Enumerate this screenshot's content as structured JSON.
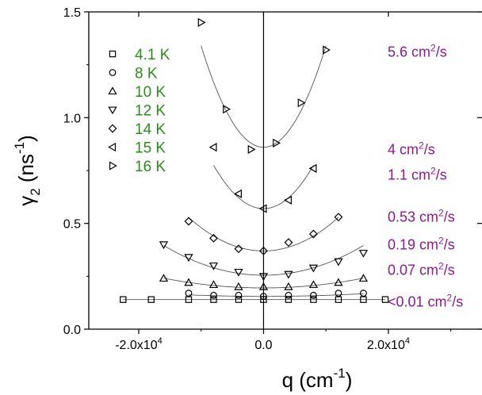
{
  "chart_data": {
    "type": "scatter",
    "xlabel": "q (cm",
    "xlabel_exp": "-1",
    "xlabel_close": ")",
    "ylabel": "γ",
    "ylabel_sub": "2",
    "ylabel_mid": " (ns",
    "ylabel_exp": "-1",
    "ylabel_close": ")",
    "xlim": [
      -28000,
      35000
    ],
    "ylim": [
      0,
      1.5
    ],
    "grid": false,
    "legend_position": "top-left",
    "x_ticks": [
      {
        "value": -20000,
        "label": "-2.0x10",
        "exp": "4"
      },
      {
        "value": 0,
        "label": "0.0",
        "exp": ""
      },
      {
        "value": 20000,
        "label": "2.0x10",
        "exp": "4"
      }
    ],
    "y_ticks": [
      {
        "value": 0.0,
        "label": "0.0"
      },
      {
        "value": 0.5,
        "label": "0.5"
      },
      {
        "value": 1.0,
        "label": "1.0"
      },
      {
        "value": 1.5,
        "label": "1.5"
      }
    ],
    "legend_color": "#2e8b1e",
    "diffusion_color": "#8b1a8b",
    "series": [
      {
        "name": "4.1 K",
        "marker": "square",
        "x": [
          -22500,
          -18000,
          -12000,
          -8000,
          -4000,
          0,
          4000,
          8000,
          12000,
          16000,
          19500
        ],
        "y": [
          0.14,
          0.14,
          0.14,
          0.14,
          0.14,
          0.14,
          0.14,
          0.14,
          0.14,
          0.14,
          0.14
        ],
        "fit": [
          0.14,
          0.0
        ]
      },
      {
        "name": "8 K",
        "marker": "circle",
        "x": [
          -12000,
          -8000,
          -4000,
          0,
          4000,
          8000,
          12000,
          16000
        ],
        "y": [
          0.17,
          0.16,
          0.16,
          0.155,
          0.16,
          0.16,
          0.17,
          0.17
        ],
        "fit": [
          0.155,
          5e-11
        ]
      },
      {
        "name": "10 K",
        "marker": "triangle-up",
        "x": [
          -16000,
          -12000,
          -8000,
          -4000,
          0,
          4000,
          8000,
          12000,
          16000
        ],
        "y": [
          0.24,
          0.22,
          0.21,
          0.2,
          0.2,
          0.2,
          0.21,
          0.22,
          0.24
        ],
        "fit": [
          0.195,
          1.8e-10
        ]
      },
      {
        "name": "12 K",
        "marker": "triangle-down",
        "x": [
          -16000,
          -12000,
          -8000,
          -4000,
          0,
          4000,
          8000,
          12000,
          16000
        ],
        "y": [
          0.4,
          0.34,
          0.3,
          0.27,
          0.25,
          0.26,
          0.29,
          0.32,
          0.36
        ],
        "fit": [
          0.255,
          5.5e-10
        ]
      },
      {
        "name": "14 K",
        "marker": "diamond",
        "x": [
          -12000,
          -8000,
          -4000,
          0,
          4000,
          8000,
          12000
        ],
        "y": [
          0.51,
          0.43,
          0.38,
          0.37,
          0.41,
          0.45,
          0.53
        ],
        "fit": [
          0.37,
          1.1e-09
        ]
      },
      {
        "name": "15 K",
        "marker": "triangle-left",
        "x": [
          -8000,
          -4000,
          0,
          4000,
          8000
        ],
        "y": [
          0.86,
          0.64,
          0.57,
          0.61,
          0.76
        ],
        "fit": [
          0.57,
          3.2e-09
        ]
      },
      {
        "name": "16 K",
        "marker": "triangle-right",
        "x": [
          -10000,
          -6000,
          -2000,
          2000,
          6000,
          10000
        ],
        "y": [
          1.45,
          1.04,
          0.85,
          0.88,
          1.07,
          1.32
        ],
        "fit": [
          0.86,
          4.8e-09
        ]
      }
    ],
    "diffusion_labels": [
      {
        "text": "5.6 cm",
        "exp": "2",
        "unit": "/s",
        "y": 1.31
      },
      {
        "text": "4 cm",
        "exp": "2",
        "unit": "/s",
        "y": 0.85
      },
      {
        "text": "1.1 cm",
        "exp": "2",
        "unit": "/s",
        "y": 0.73
      },
      {
        "text": "0.53 cm",
        "exp": "2",
        "unit": "/s",
        "y": 0.53
      },
      {
        "text": "0.19 cm",
        "exp": "2",
        "unit": "/s",
        "y": 0.4
      },
      {
        "text": "0.07 cm",
        "exp": "2",
        "unit": "/s",
        "y": 0.28
      },
      {
        "text": "<0.01 cm",
        "exp": "2",
        "unit": "/s",
        "y": 0.13
      }
    ]
  }
}
